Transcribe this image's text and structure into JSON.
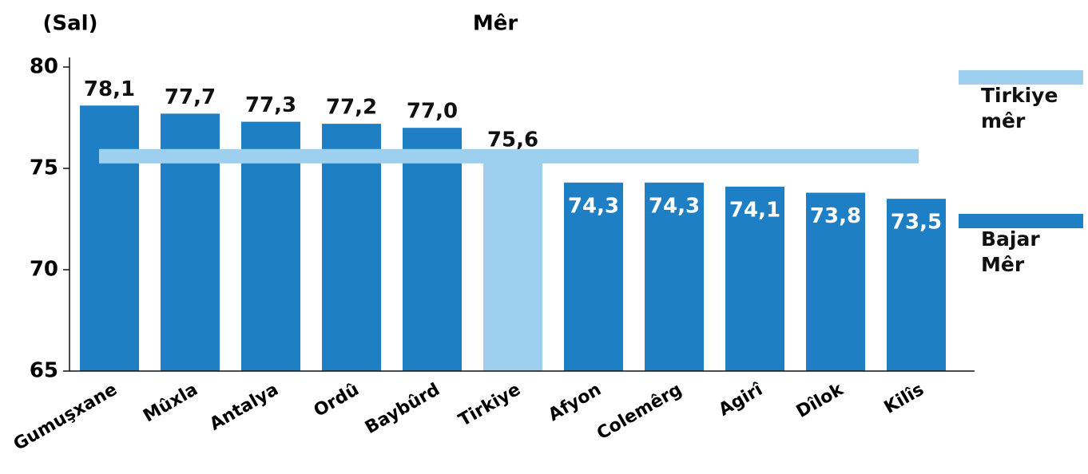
{
  "chart_data": {
    "type": "bar",
    "title": "Mêr",
    "y_label": "(Sal)",
    "categories": [
      "Gumuşxane",
      "Mûxla",
      "Antalya",
      "Ordû",
      "Baybûrd",
      "Tirkiye",
      "Afyon",
      "Colemêrg",
      "Agirî",
      "Dîlok",
      "Kilîs"
    ],
    "values": [
      78.1,
      77.7,
      77.3,
      77.2,
      77.0,
      75.6,
      74.3,
      74.3,
      74.1,
      73.8,
      73.5
    ],
    "value_labels": [
      "78,1",
      "77,7",
      "77,3",
      "77,2",
      "77,0",
      "75,6",
      "74,3",
      "74,3",
      "74,1",
      "73,8",
      "73,5"
    ],
    "colors": [
      "#1f7fc4",
      "#1f7fc4",
      "#1f7fc4",
      "#1f7fc4",
      "#1f7fc4",
      "#9dd0ef",
      "#1f7fc4",
      "#1f7fc4",
      "#1f7fc4",
      "#1f7fc4",
      "#1f7fc4"
    ],
    "legend": [
      {
        "label": "Tirkiye mêr",
        "color": "#9dd0ef"
      },
      {
        "label": "Bajar Mêr",
        "color": "#1f7fc4"
      }
    ],
    "ylim": [
      65,
      80
    ],
    "yticks": [
      65,
      70,
      75,
      80
    ]
  }
}
